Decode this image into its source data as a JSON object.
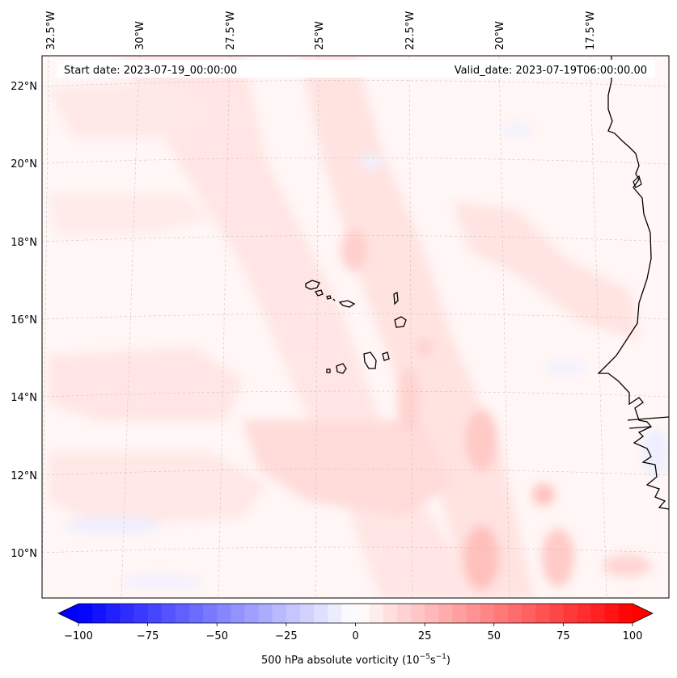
{
  "map": {
    "start_date_label": "Start date: 2023-07-19_00:00:00",
    "valid_date_label": "Valid_date: 2023-07-19T06:00:00.00",
    "lon_labels": [
      "32.5°W",
      "30°W",
      "27.5°W",
      "25°W",
      "22.5°W",
      "20°W",
      "17.5°W"
    ],
    "lat_labels": [
      "22°N",
      "20°N",
      "18°N",
      "16°N",
      "14°N",
      "12°N",
      "10°N"
    ],
    "field": "500 hPa absolute vorticity",
    "extent": {
      "lon_min": -33,
      "lon_max": -15.5,
      "lat_min": 9,
      "lat_max": 22.8
    }
  },
  "colorbar": {
    "label_prefix": "500 hPa absolute vorticity (10",
    "label_exp1": "−5",
    "label_mid": "s",
    "label_exp2": "−1",
    "label_suffix": ")",
    "ticks": [
      "−100",
      "−75",
      "−50",
      "−25",
      "0",
      "25",
      "50",
      "75",
      "100"
    ],
    "min": -100,
    "max": 100,
    "levels": 41,
    "colormap": "bwr",
    "low_color": "#0000ff",
    "mid_color": "#ffffff",
    "high_color": "#ff0000"
  }
}
